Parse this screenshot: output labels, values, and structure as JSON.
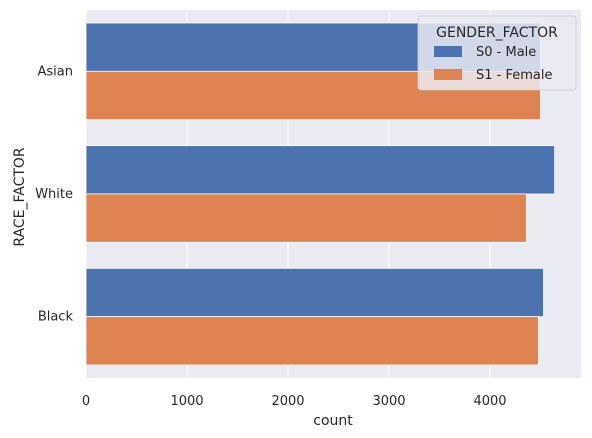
{
  "chart_data": {
    "type": "bar",
    "orientation": "horizontal",
    "categories": [
      "Asian",
      "White",
      "Black"
    ],
    "series": [
      {
        "name": "S0 - Male",
        "values": [
          4500,
          4640,
          4530
        ],
        "color": "#4c72b0"
      },
      {
        "name": "S1 - Female",
        "values": [
          4500,
          4360,
          4480
        ],
        "color": "#dd8452"
      }
    ],
    "xlabel": "count",
    "ylabel": "RACE_FACTOR",
    "xlim": [
      0,
      4800
    ],
    "xticks": [
      0,
      1000,
      2000,
      3000,
      4000
    ],
    "xtick_labels": [
      "0",
      "1000",
      "2000",
      "3000",
      "4000"
    ],
    "grid": true,
    "background": "#eaeaf2",
    "legend": {
      "title": "GENDER_FACTOR",
      "placement": "top-right"
    }
  }
}
